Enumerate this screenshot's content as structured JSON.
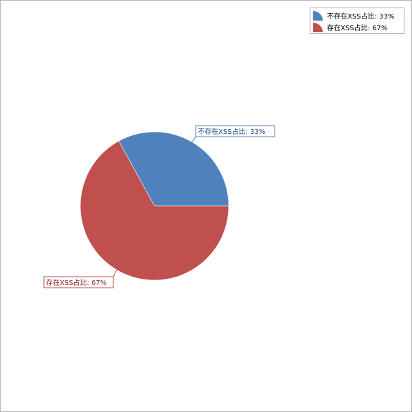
{
  "chart_data": {
    "type": "pie",
    "slices": [
      {
        "label": "不存在XSS占比: 33%",
        "value": 33,
        "color": "#4f81bd",
        "label_color": "#1f497d"
      },
      {
        "label": "存在XSS占比: 67%",
        "value": 67,
        "color": "#c0504d",
        "label_color": "#8b2c29"
      }
    ],
    "start_angle_deg": 0,
    "direction": "counterclockwise",
    "legend_position": "top-right",
    "title": ""
  }
}
